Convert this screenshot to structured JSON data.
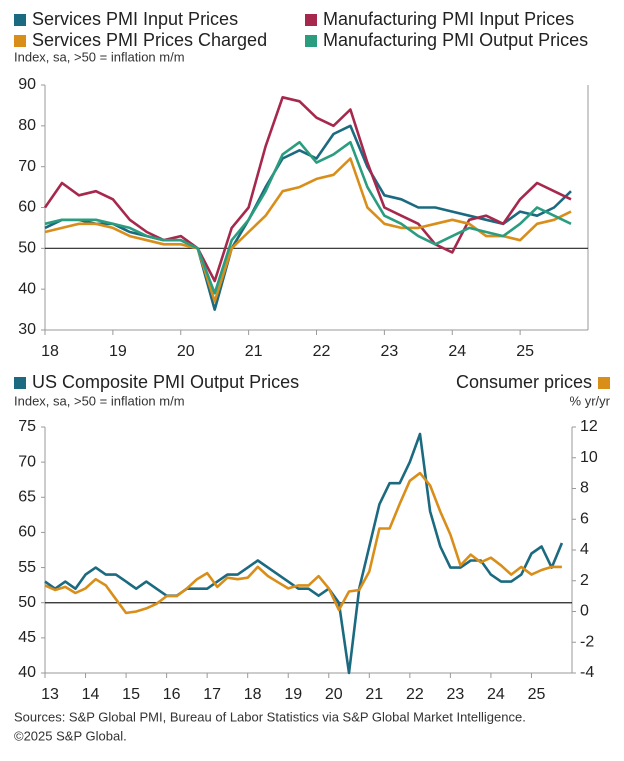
{
  "chart_data": [
    {
      "type": "line",
      "legend": "top",
      "subtitle": "Index, sa, >50 = inflation m/m",
      "ylim": [
        30,
        90
      ],
      "yticks": [
        30,
        40,
        50,
        60,
        70,
        80,
        90
      ],
      "reference_line": 50,
      "xlim": [
        2018,
        2026
      ],
      "xticks": [
        {
          "value": 2018,
          "label": "18"
        },
        {
          "value": 2019,
          "label": "19"
        },
        {
          "value": 2020,
          "label": "20"
        },
        {
          "value": 2021,
          "label": "21"
        },
        {
          "value": 2022,
          "label": "22"
        },
        {
          "value": 2023,
          "label": "23"
        },
        {
          "value": 2024,
          "label": "24"
        },
        {
          "value": 2025,
          "label": "25"
        }
      ],
      "x": [
        2018,
        2018.25,
        2018.5,
        2018.75,
        2019,
        2019.25,
        2019.5,
        2019.75,
        2020,
        2020.25,
        2020.5,
        2020.75,
        2021,
        2021.25,
        2021.5,
        2021.75,
        2022,
        2022.25,
        2022.5,
        2022.75,
        2023,
        2023.25,
        2023.5,
        2023.75,
        2024,
        2024.25,
        2024.5,
        2024.75,
        2025,
        2025.25,
        2025.5,
        2025.75
      ],
      "series": [
        {
          "name": "Services PMI Input Prices",
          "color": "#1b6a80",
          "values": [
            55,
            57,
            57,
            56,
            56,
            54,
            53,
            52,
            52,
            50,
            35,
            50,
            57,
            65,
            72,
            74,
            72,
            78,
            80,
            70,
            63,
            62,
            60,
            60,
            59,
            58,
            57,
            56,
            59,
            58,
            60,
            64
          ]
        },
        {
          "name": "Manufacturing PMI Input Prices",
          "color": "#a6294d",
          "values": [
            60,
            66,
            63,
            64,
            62,
            57,
            54,
            52,
            53,
            50,
            42,
            55,
            60,
            75,
            87,
            86,
            82,
            80,
            84,
            71,
            60,
            58,
            56,
            51,
            49,
            57,
            58,
            56,
            62,
            66,
            64,
            62
          ]
        },
        {
          "name": "Services PMI Prices Charged",
          "color": "#d98e1a",
          "values": [
            54,
            55,
            56,
            56,
            55,
            53,
            52,
            51,
            51,
            50,
            37,
            50,
            54,
            58,
            64,
            65,
            67,
            68,
            72,
            60,
            56,
            55,
            55,
            56,
            57,
            56,
            53,
            53,
            52,
            56,
            57,
            59
          ]
        },
        {
          "name": "Manufacturing PMI Output Prices",
          "color": "#2a9d7f",
          "values": [
            56,
            57,
            57,
            57,
            56,
            55,
            53,
            52,
            52,
            50,
            39,
            52,
            57,
            64,
            73,
            76,
            71,
            73,
            76,
            65,
            58,
            56,
            53,
            51,
            53,
            55,
            54,
            53,
            56,
            60,
            58,
            56
          ]
        }
      ]
    },
    {
      "type": "line",
      "legend": "top",
      "subtitle": "Index, sa, >50 = inflation m/m",
      "y2_label": "% yr/yr",
      "ylim": [
        40,
        75
      ],
      "yticks": [
        40,
        45,
        50,
        55,
        60,
        65,
        70,
        75
      ],
      "y2lim": [
        -4,
        12
      ],
      "y2ticks": [
        -4,
        -2,
        0,
        2,
        4,
        6,
        8,
        10,
        12
      ],
      "reference_line": 50,
      "xlim": [
        2013,
        2026
      ],
      "xticks": [
        {
          "value": 2013,
          "label": "13"
        },
        {
          "value": 2014,
          "label": "14"
        },
        {
          "value": 2015,
          "label": "15"
        },
        {
          "value": 2016,
          "label": "16"
        },
        {
          "value": 2017,
          "label": "17"
        },
        {
          "value": 2018,
          "label": "18"
        },
        {
          "value": 2019,
          "label": "19"
        },
        {
          "value": 2020,
          "label": "20"
        },
        {
          "value": 2021,
          "label": "21"
        },
        {
          "value": 2022,
          "label": "22"
        },
        {
          "value": 2023,
          "label": "23"
        },
        {
          "value": 2024,
          "label": "24"
        },
        {
          "value": 2025,
          "label": "25"
        }
      ],
      "x": [
        2013,
        2013.25,
        2013.5,
        2013.75,
        2014,
        2014.25,
        2014.5,
        2014.75,
        2015,
        2015.25,
        2015.5,
        2015.75,
        2016,
        2016.25,
        2016.5,
        2016.75,
        2017,
        2017.25,
        2017.5,
        2017.75,
        2018,
        2018.25,
        2018.5,
        2018.75,
        2019,
        2019.25,
        2019.5,
        2019.75,
        2020,
        2020.25,
        2020.5,
        2020.75,
        2021,
        2021.25,
        2021.5,
        2021.75,
        2022,
        2022.25,
        2022.5,
        2022.75,
        2023,
        2023.25,
        2023.5,
        2023.75,
        2024,
        2024.25,
        2024.5,
        2024.75,
        2025,
        2025.25,
        2025.5,
        2025.75
      ],
      "series": [
        {
          "name": "US Composite PMI Output Prices",
          "color": "#1b6a80",
          "values": [
            53,
            52,
            53,
            52,
            54,
            55,
            54,
            54,
            53,
            52,
            53,
            52,
            51,
            51,
            52,
            52,
            52,
            53,
            54,
            54,
            55,
            56,
            55,
            54,
            53,
            52,
            52,
            51,
            52,
            50,
            40,
            52,
            58,
            64,
            67,
            67,
            70,
            74,
            63,
            58,
            55,
            55,
            56,
            56,
            54,
            53,
            53,
            54,
            57,
            58,
            55,
            58.5
          ]
        },
        {
          "name": "Consumer prices",
          "color": "#d98e1a",
          "axis": "y2",
          "values": [
            1.7,
            1.4,
            1.6,
            1.2,
            1.5,
            2.1,
            1.7,
            0.8,
            -0.1,
            0.0,
            0.2,
            0.5,
            1.0,
            1.0,
            1.5,
            2.1,
            2.5,
            1.6,
            2.2,
            2.1,
            2.2,
            2.9,
            2.3,
            1.9,
            1.5,
            1.7,
            1.7,
            2.3,
            1.5,
            0.1,
            1.3,
            1.4,
            2.6,
            5.4,
            5.4,
            7.0,
            8.5,
            9.0,
            8.2,
            6.5,
            5.0,
            3.0,
            3.7,
            3.2,
            3.5,
            3.0,
            2.4,
            2.9,
            2.4,
            2.7,
            2.9,
            2.9
          ]
        }
      ]
    }
  ],
  "footer": [
    "Sources: S&P Global PMI, Bureau of Labor Statistics via S&P Global Market Intelligence.",
    "©2025 S&P Global."
  ]
}
